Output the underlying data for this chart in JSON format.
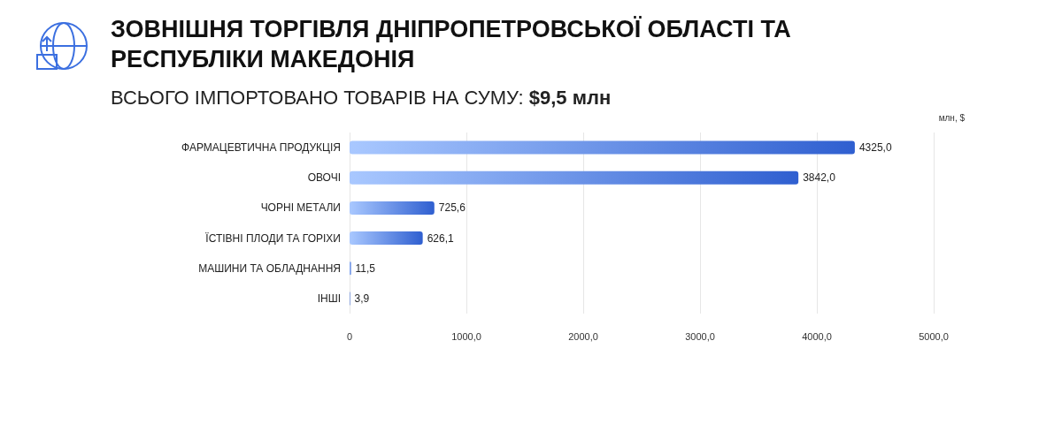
{
  "chart_data": {
    "type": "bar",
    "orientation": "horizontal",
    "title": "ЗОВНІШНЯ ТОРГІВЛЯ ДНІПРОПЕТРОВСЬКОЇ ОБЛАСТІ ТА РЕСПУБЛІКИ МАКЕДОНІЯ",
    "subtitle": "ВСЬОГО ІМПОРТОВАНО ТОВАРІВ НА СУМУ: $9,5 млн",
    "xlabel": "млн, $",
    "categories": [
      "ФАРМАЦЕВТИЧНА ПРОДУКЦІЯ",
      "ОВОЧІ",
      "ЧОРНІ МЕТАЛИ",
      "ЇСТІВНІ ПЛОДИ ТА ГОРІХИ",
      "МАШИНИ ТА ОБЛАДНАННЯ",
      "ІНШІ"
    ],
    "values": [
      4325.0,
      3842.0,
      725.6,
      626.1,
      11.5,
      3.9
    ],
    "value_labels": [
      "4325,0",
      "3842,0",
      "725,6",
      "626,1",
      "11,5",
      "3,9"
    ],
    "color": "#2f5fd0",
    "xlim": [
      0,
      5000
    ],
    "xticks": [
      0,
      {
        "value": 1000,
        "label": "1000,0"
      },
      {
        "value": 2000,
        "label": "2000,0"
      },
      {
        "value": 3000,
        "label": "3000,0"
      },
      {
        "value": 4000,
        "label": "4000,0"
      },
      {
        "value": 5000,
        "label": "5000,0"
      }
    ],
    "grid": "x"
  }
}
